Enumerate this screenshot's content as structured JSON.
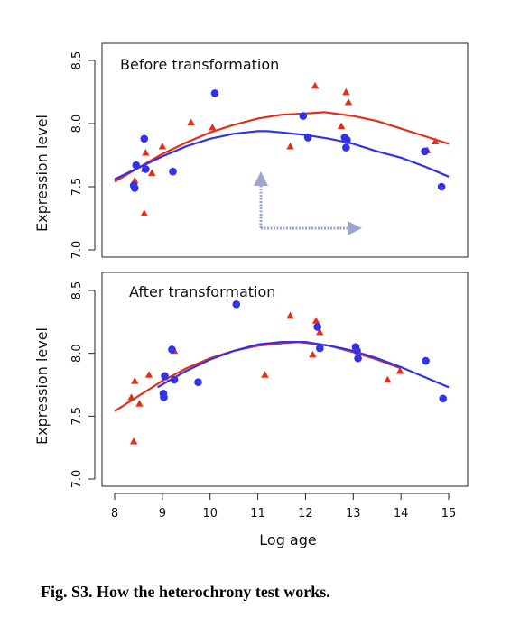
{
  "caption": "Fig. S3. How the heterochrony test works.",
  "colors": {
    "red": "#e0301a",
    "blue": "#3232e6",
    "arrow": "#9aa6cc"
  },
  "chart_data": [
    {
      "type": "scatter",
      "title": "Before transformation",
      "xlabel": "",
      "ylabel": "Expression level",
      "xlim": [
        8,
        15
      ],
      "ylim": [
        7.0,
        8.5
      ],
      "yticks": [
        "7.0",
        "7.5",
        "8.0",
        "8.5"
      ],
      "show_arrows": true,
      "series": [
        {
          "color": "red",
          "marker": "triangle",
          "points": [
            [
              8.42,
              7.55
            ],
            [
              8.62,
              7.29
            ],
            [
              8.63,
              7.64
            ],
            [
              8.65,
              7.77
            ],
            [
              8.78,
              7.61
            ],
            [
              9.0,
              7.82
            ],
            [
              9.6,
              8.01
            ],
            [
              10.05,
              7.97
            ],
            [
              11.68,
              7.82
            ],
            [
              12.2,
              8.3
            ],
            [
              12.75,
              7.98
            ],
            [
              12.85,
              8.25
            ],
            [
              12.9,
              8.17
            ],
            [
              14.55,
              7.79
            ],
            [
              14.72,
              7.86
            ]
          ],
          "fit": [
            [
              8.0,
              7.54
            ],
            [
              8.5,
              7.65
            ],
            [
              9.0,
              7.76
            ],
            [
              9.5,
              7.85
            ],
            [
              10.0,
              7.93
            ],
            [
              10.5,
              7.99
            ],
            [
              11.0,
              8.04
            ],
            [
              11.5,
              8.07
            ],
            [
              12.0,
              8.08
            ],
            [
              12.4,
              8.09
            ],
            [
              13.0,
              8.06
            ],
            [
              13.5,
              8.02
            ],
            [
              14.0,
              7.96
            ],
            [
              14.5,
              7.9
            ],
            [
              15.0,
              7.84
            ]
          ]
        },
        {
          "color": "blue",
          "marker": "circle",
          "points": [
            [
              8.4,
              7.51
            ],
            [
              8.42,
              7.49
            ],
            [
              8.45,
              7.67
            ],
            [
              8.62,
              7.88
            ],
            [
              8.65,
              7.64
            ],
            [
              9.22,
              7.62
            ],
            [
              10.1,
              8.24
            ],
            [
              11.95,
              8.06
            ],
            [
              12.05,
              7.89
            ],
            [
              12.82,
              7.89
            ],
            [
              12.85,
              7.81
            ],
            [
              12.87,
              7.87
            ],
            [
              14.5,
              7.78
            ],
            [
              14.85,
              7.5
            ]
          ],
          "fit": [
            [
              8.0,
              7.56
            ],
            [
              8.5,
              7.65
            ],
            [
              9.0,
              7.74
            ],
            [
              9.5,
              7.82
            ],
            [
              10.0,
              7.88
            ],
            [
              10.5,
              7.92
            ],
            [
              11.0,
              7.94
            ],
            [
              11.2,
              7.94
            ],
            [
              11.5,
              7.93
            ],
            [
              12.0,
              7.91
            ],
            [
              12.5,
              7.88
            ],
            [
              13.0,
              7.84
            ],
            [
              13.5,
              7.78
            ],
            [
              14.0,
              7.73
            ],
            [
              14.5,
              7.66
            ],
            [
              15.0,
              7.58
            ]
          ]
        }
      ]
    },
    {
      "type": "scatter",
      "title": "After transformation",
      "xlabel": "Log age",
      "ylabel": "Expression level",
      "xlim": [
        8,
        15
      ],
      "ylim": [
        7.0,
        8.5
      ],
      "xticks": [
        "8",
        "9",
        "10",
        "11",
        "12",
        "13",
        "14",
        "15"
      ],
      "yticks": [
        "7.0",
        "7.5",
        "8.0",
        "8.5"
      ],
      "show_arrows": false,
      "series": [
        {
          "color": "red",
          "marker": "triangle",
          "points": [
            [
              8.35,
              7.65
            ],
            [
              8.4,
              7.3
            ],
            [
              8.42,
              7.78
            ],
            [
              8.52,
              7.6
            ],
            [
              8.72,
              7.83
            ],
            [
              9.05,
              7.81
            ],
            [
              9.25,
              8.02
            ],
            [
              11.15,
              7.83
            ],
            [
              11.68,
              8.3
            ],
            [
              12.15,
              7.99
            ],
            [
              12.22,
              8.26
            ],
            [
              12.3,
              8.17
            ],
            [
              13.1,
              8.02
            ],
            [
              13.72,
              7.79
            ],
            [
              13.98,
              7.86
            ]
          ],
          "fit": [
            [
              8.0,
              7.54
            ],
            [
              8.5,
              7.66
            ],
            [
              9.0,
              7.78
            ],
            [
              9.5,
              7.88
            ],
            [
              10.0,
              7.96
            ],
            [
              10.5,
              8.02
            ],
            [
              11.0,
              8.06
            ],
            [
              11.5,
              8.08
            ],
            [
              11.85,
              8.09
            ],
            [
              12.5,
              8.06
            ],
            [
              13.0,
              8.01
            ],
            [
              13.5,
              7.95
            ],
            [
              14.0,
              7.88
            ]
          ]
        },
        {
          "color": "blue",
          "marker": "circle",
          "points": [
            [
              9.02,
              7.68
            ],
            [
              9.03,
              7.65
            ],
            [
              9.05,
              7.82
            ],
            [
              9.2,
              8.03
            ],
            [
              9.25,
              7.79
            ],
            [
              9.75,
              7.77
            ],
            [
              10.55,
              8.39
            ],
            [
              12.25,
              8.21
            ],
            [
              12.3,
              8.04
            ],
            [
              13.05,
              8.05
            ],
            [
              13.08,
              8.02
            ],
            [
              13.1,
              7.96
            ],
            [
              14.52,
              7.94
            ],
            [
              14.88,
              7.64
            ]
          ],
          "fit": [
            [
              8.9,
              7.73
            ],
            [
              9.5,
              7.86
            ],
            [
              10.0,
              7.95
            ],
            [
              10.5,
              8.02
            ],
            [
              11.0,
              8.07
            ],
            [
              11.5,
              8.09
            ],
            [
              11.75,
              8.09
            ],
            [
              12.0,
              8.09
            ],
            [
              12.5,
              8.06
            ],
            [
              13.0,
              8.02
            ],
            [
              13.5,
              7.96
            ],
            [
              14.0,
              7.89
            ],
            [
              14.5,
              7.81
            ],
            [
              15.0,
              7.73
            ]
          ]
        }
      ]
    }
  ]
}
